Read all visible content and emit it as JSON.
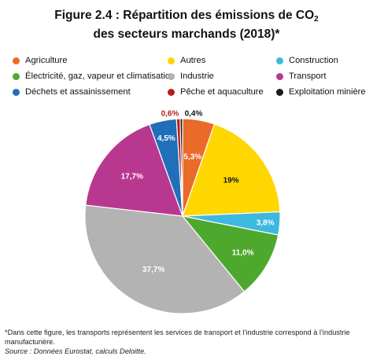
{
  "title": {
    "line1_prefix": "Figure 2.4 : Répartition des émissions de CO",
    "line1_sub": "2",
    "line2": "des secteurs marchands (2018)*"
  },
  "chart_data": {
    "type": "pie",
    "title": "Figure 2.4 : Répartition des émissions de CO2 des secteurs marchands (2018)*",
    "legend_position": "top",
    "slices": [
      {
        "name": "Agriculture",
        "value": 5.3,
        "label": "5,3%",
        "color": "#ea6a2a"
      },
      {
        "name": "Autres",
        "value": 19,
        "label": "19%",
        "color": "#ffd700"
      },
      {
        "name": "Construction",
        "value": 3.8,
        "label": "3,8%",
        "color": "#3db8e0"
      },
      {
        "name": "Électricité, gaz, vapeur et climatisation",
        "value": 11.0,
        "label": "11,0%",
        "color": "#4fa82e"
      },
      {
        "name": "Industrie",
        "value": 37.7,
        "label": "37,7%",
        "color": "#b3b3b3"
      },
      {
        "name": "Transport",
        "value": 17.7,
        "label": "17,7%",
        "color": "#b9388f"
      },
      {
        "name": "Déchets et assainissement",
        "value": 4.5,
        "label": "4,5%",
        "color": "#1f6fba"
      },
      {
        "name": "Pêche et aquaculture",
        "value": 0.6,
        "label": "0,6%",
        "color": "#b81d1d"
      },
      {
        "name": "Exploitation minière",
        "value": 0.4,
        "label": "0,4%",
        "color": "#1a1a1a"
      }
    ]
  },
  "legend": {
    "items": [
      {
        "label": "Agriculture",
        "color": "#ea6a2a"
      },
      {
        "label": "Autres",
        "color": "#ffd700"
      },
      {
        "label": "Construction",
        "color": "#3db8e0"
      },
      {
        "label": "Électricité, gaz, vapeur et climatisation",
        "color": "#4fa82e"
      },
      {
        "label": "Industrie",
        "color": "#b3b3b3"
      },
      {
        "label": "Transport",
        "color": "#b9388f"
      },
      {
        "label": "Déchets et assainissement",
        "color": "#1f6fba"
      },
      {
        "label": "Pêche et aquaculture",
        "color": "#b81d1d"
      },
      {
        "label": "Exploitation minière",
        "color": "#1a1a1a"
      }
    ]
  },
  "footnote": {
    "note": "*Dans cette figure, les transports représentent les services de transport et l’industrie correspond à l’industrie manufacturière.",
    "source": "Source : Données Eurostat, calculs Deloitte."
  }
}
